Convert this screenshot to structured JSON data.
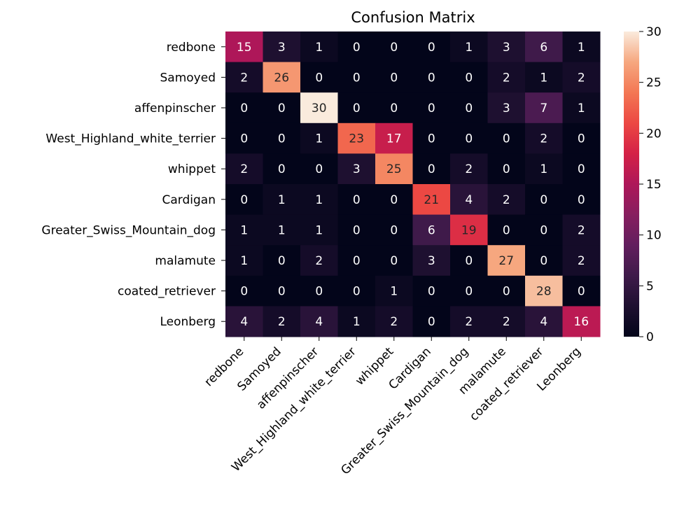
{
  "chart_data": {
    "type": "heatmap",
    "title": "Confusion Matrix",
    "xlabel": "",
    "ylabel": "",
    "row_labels": [
      "redbone",
      "Samoyed",
      "affenpinscher",
      "West_Highland_white_terrier",
      "whippet",
      "Cardigan",
      "Greater_Swiss_Mountain_dog",
      "malamute",
      "coated_retriever",
      "Leonberg"
    ],
    "col_labels": [
      "redbone",
      "Samoyed",
      "affenpinscher",
      "West_Highland_white_terrier",
      "whippet",
      "Cardigan",
      "Greater_Swiss_Mountain_dog",
      "malamute",
      "coated_retriever",
      "Leonberg"
    ],
    "values": [
      [
        15,
        3,
        1,
        0,
        0,
        0,
        1,
        3,
        6,
        1
      ],
      [
        2,
        26,
        0,
        0,
        0,
        0,
        0,
        2,
        1,
        2
      ],
      [
        0,
        0,
        30,
        0,
        0,
        0,
        0,
        3,
        7,
        1
      ],
      [
        0,
        0,
        1,
        23,
        17,
        0,
        0,
        0,
        2,
        0
      ],
      [
        2,
        0,
        0,
        3,
        25,
        0,
        2,
        0,
        1,
        0
      ],
      [
        0,
        1,
        1,
        0,
        0,
        21,
        4,
        2,
        0,
        0
      ],
      [
        1,
        1,
        1,
        0,
        0,
        6,
        19,
        0,
        0,
        2
      ],
      [
        1,
        0,
        2,
        0,
        0,
        3,
        0,
        27,
        0,
        2
      ],
      [
        0,
        0,
        0,
        0,
        1,
        0,
        0,
        0,
        28,
        0
      ],
      [
        4,
        2,
        4,
        1,
        2,
        0,
        2,
        2,
        4,
        16
      ]
    ],
    "colorbar": {
      "range": [
        0,
        30
      ],
      "ticks": [
        0,
        5,
        10,
        15,
        20,
        25,
        30
      ],
      "colormap": "rocket"
    },
    "grid": false,
    "annotations": "cell values shown"
  }
}
